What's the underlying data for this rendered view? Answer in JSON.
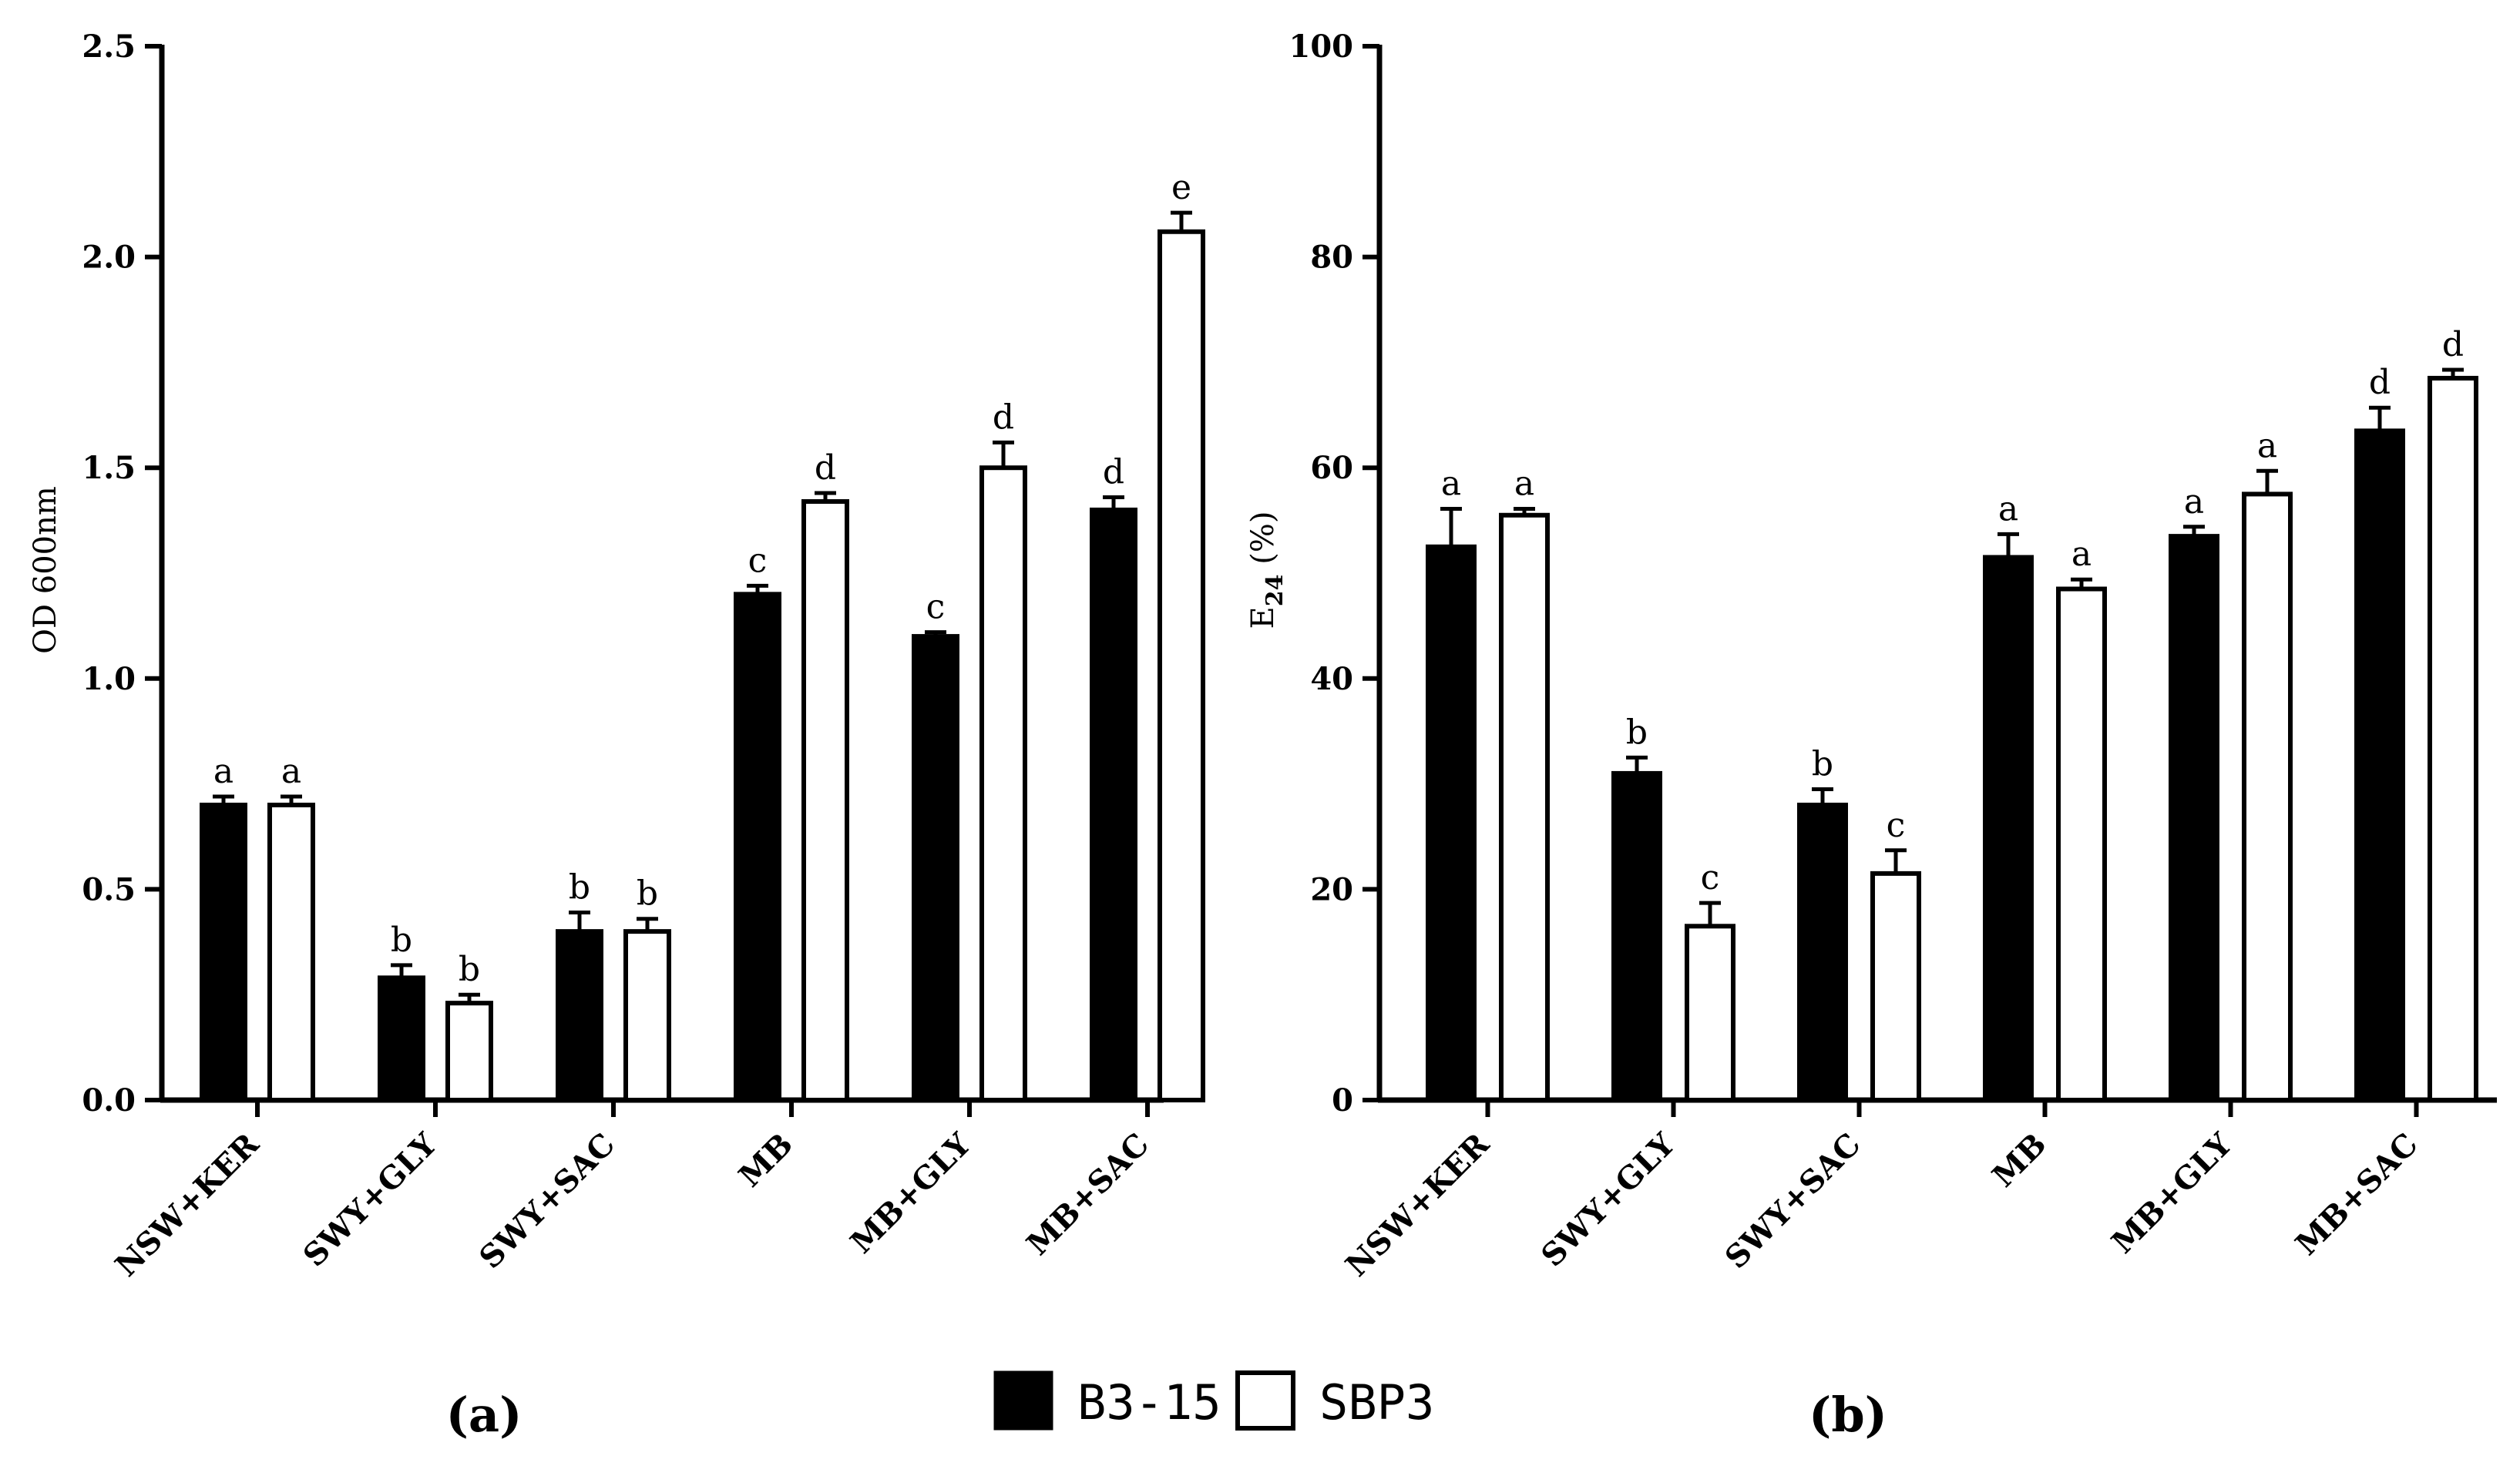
{
  "chart_data": [
    {
      "type": "bar",
      "panel_label": "(a)",
      "ylabel": "OD 600nm",
      "xlabel": "",
      "ylim": [
        0,
        2.5
      ],
      "yticks": [
        "0.0",
        "0.5",
        "1.0",
        "1.5",
        "2.0",
        "2.5"
      ],
      "categories": [
        "NSW+KER",
        "SWY+GLY",
        "SWY+SAC",
        "MB",
        "MB+GLY",
        "MB+SAC"
      ],
      "series": [
        {
          "name": "B3-15",
          "values": [
            0.7,
            0.29,
            0.4,
            1.2,
            1.1,
            1.4
          ],
          "errors": [
            0.02,
            0.03,
            0.045,
            0.02,
            0.01,
            0.03
          ],
          "labels": [
            "a",
            "b",
            "b",
            "c",
            "c",
            "d"
          ]
        },
        {
          "name": "SBP3",
          "values": [
            0.7,
            0.23,
            0.4,
            1.42,
            1.5,
            2.06
          ],
          "errors": [
            0.02,
            0.02,
            0.03,
            0.02,
            0.06,
            0.045
          ],
          "labels": [
            "a",
            "b",
            "b",
            "d",
            "d",
            "e"
          ]
        }
      ]
    },
    {
      "type": "bar",
      "panel_label": "(b)",
      "ylabel_main": "E",
      "ylabel_sub": "24",
      "ylabel_rest": " (%)",
      "xlabel": "",
      "ylim": [
        0,
        100
      ],
      "yticks": [
        "0",
        "20",
        "40",
        "60",
        "80",
        "100"
      ],
      "categories": [
        "NSW+KER",
        "SWY+GLY",
        "SWY+SAC",
        "MB",
        "MB+GLY",
        "MB+SAC"
      ],
      "series": [
        {
          "name": "B3-15",
          "values": [
            52.5,
            31,
            28,
            51.5,
            53.5,
            63.5
          ],
          "errors": [
            3.6,
            1.5,
            1.5,
            2.2,
            0.9,
            2.2
          ],
          "labels": [
            "a",
            "b",
            "b",
            "a",
            "a",
            "d"
          ]
        },
        {
          "name": "SBP3",
          "values": [
            55.5,
            16.5,
            21.5,
            48.5,
            57.5,
            68.5
          ],
          "errors": [
            0.6,
            2.2,
            2.2,
            0.9,
            2.2,
            0.8
          ],
          "labels": [
            "a",
            "c",
            "c",
            "a",
            "a",
            "d"
          ]
        }
      ]
    }
  ],
  "legend": {
    "items": [
      "B3-15",
      "SBP3"
    ]
  },
  "colors": {
    "series_fill": [
      "#000000",
      "#ffffff"
    ],
    "stroke": "#000000"
  }
}
